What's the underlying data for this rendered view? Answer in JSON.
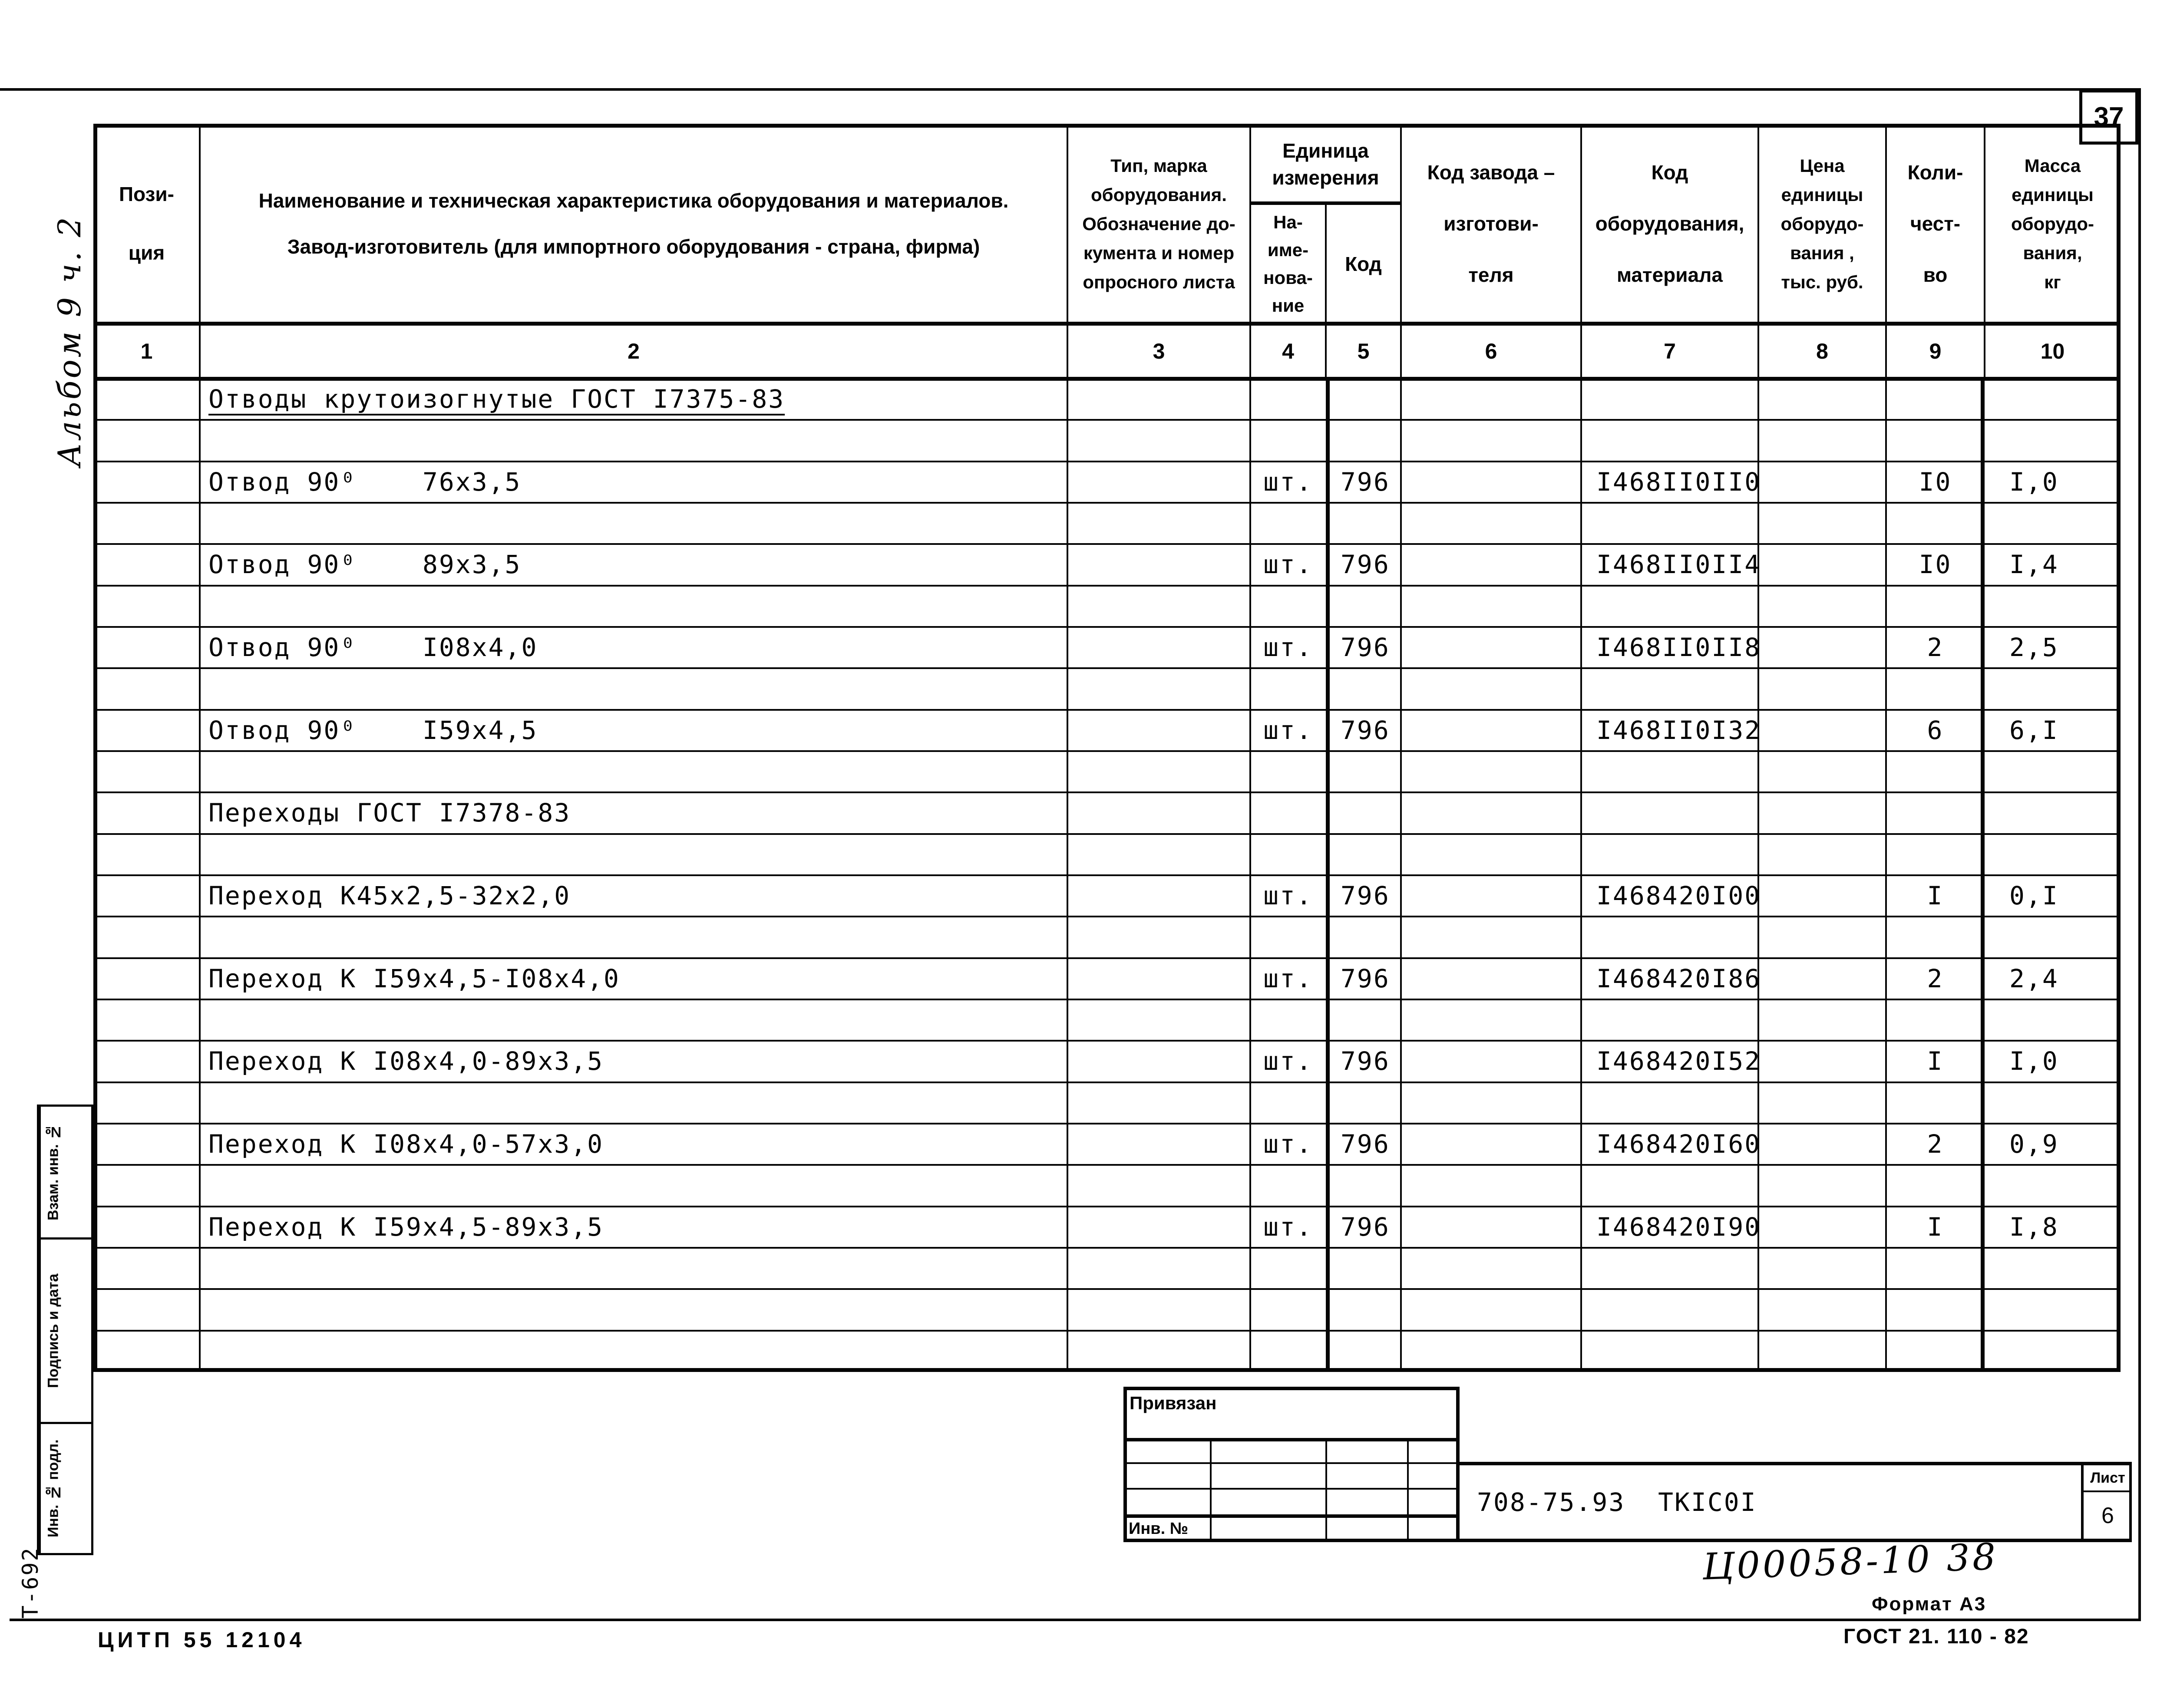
{
  "page": {
    "number": "37",
    "album_note": "Альбом 9 ч. 2",
    "t_code": "Т-692",
    "citp_code": "ЦИТП  55  12104",
    "format_note": "Формат А3",
    "gost_note": "ГОСТ 21. 110 - 82",
    "handwritten_code": "Ц00058-10  38"
  },
  "stamps": {
    "vzam_inv": "Взам. инв. №",
    "podpis_data": "Подпись и дата",
    "inv_podl": "Инв. № подл."
  },
  "title_block": {
    "binding_label": "Привязан",
    "inv_label": "Инв. №",
    "doc_number": "708-75.93  ТКIС0I",
    "sheet_label": "Лист",
    "sheet_number": "6"
  },
  "table": {
    "headers": {
      "c1": "Пози-\nция",
      "c2_line1": "Наименование и техническая характеристика  оборудования и материалов.",
      "c2_line2": "Завод-изготовитель  (для импортного оборудования -  страна, фирма)",
      "c3": "Тип,    марка\nоборудования.\nОбозначение  до-\nкумента  и  номер\nопросного  листа",
      "unit_group": "Единица\nизмерения",
      "c4": "На-\nиме-\nнова-\nние",
      "c5": "Код",
      "c6": "Код  завода –\nизготови-\nтеля",
      "c7": "Код\nоборудования,\nматериала",
      "c8": "Цена\nединицы\nоборудо-\nвания ,\nтыс. руб.",
      "c9": "Коли-\nчест-\nво",
      "c10": "Масса\nединицы\nоборудо-\nвания,\nкг"
    },
    "column_numbers": [
      "1",
      "2",
      "3",
      "4",
      "5",
      "6",
      "7",
      "8",
      "9",
      "10"
    ],
    "rows": [
      {
        "name": "Отводы крутоизогнутые ГОСТ I7375-83",
        "underline": true
      },
      {},
      {
        "name": "Отвод 90⁰    76x3,5",
        "unit": "шт.",
        "unit_code": "796",
        "eq_code": "I468II0II0",
        "qty": "I0",
        "mass": "I,0"
      },
      {},
      {
        "name": "Отвод 90⁰    89x3,5",
        "unit": "шт.",
        "unit_code": "796",
        "eq_code": "I468II0II4",
        "qty": "I0",
        "mass": "I,4"
      },
      {},
      {
        "name": "Отвод 90⁰    I08x4,0",
        "unit": "шт.",
        "unit_code": "796",
        "eq_code": "I468II0II8",
        "qty": "2",
        "mass": "2,5"
      },
      {},
      {
        "name": "Отвод 90⁰    I59x4,5",
        "unit": "шт.",
        "unit_code": "796",
        "eq_code": "I468II0I32",
        "qty": "6",
        "mass": "6,I"
      },
      {},
      {
        "name": "Переходы ГОСТ I7378-83"
      },
      {},
      {
        "name": "Переход К45x2,5-32x2,0",
        "unit": "шт.",
        "unit_code": "796",
        "eq_code": "I468420I00",
        "qty": "I",
        "mass": "0,I"
      },
      {},
      {
        "name": "Переход К I59x4,5-I08x4,0",
        "unit": "шт.",
        "unit_code": "796",
        "eq_code": "I468420I86",
        "qty": "2",
        "mass": "2,4"
      },
      {},
      {
        "name": "Переход К I08x4,0-89x3,5",
        "unit": "шт.",
        "unit_code": "796",
        "eq_code": "I468420I52",
        "qty": "I",
        "mass": "I,0"
      },
      {},
      {
        "name": "Переход К I08x4,0-57x3,0",
        "unit": "шт.",
        "unit_code": "796",
        "eq_code": "I468420I60",
        "qty": "2",
        "mass": "0,9"
      },
      {},
      {
        "name": "Переход К I59x4,5-89x3,5",
        "unit": "шт.",
        "unit_code": "796",
        "eq_code": "I468420I90",
        "qty": "I",
        "mass": "I,8"
      },
      {},
      {},
      {}
    ]
  }
}
